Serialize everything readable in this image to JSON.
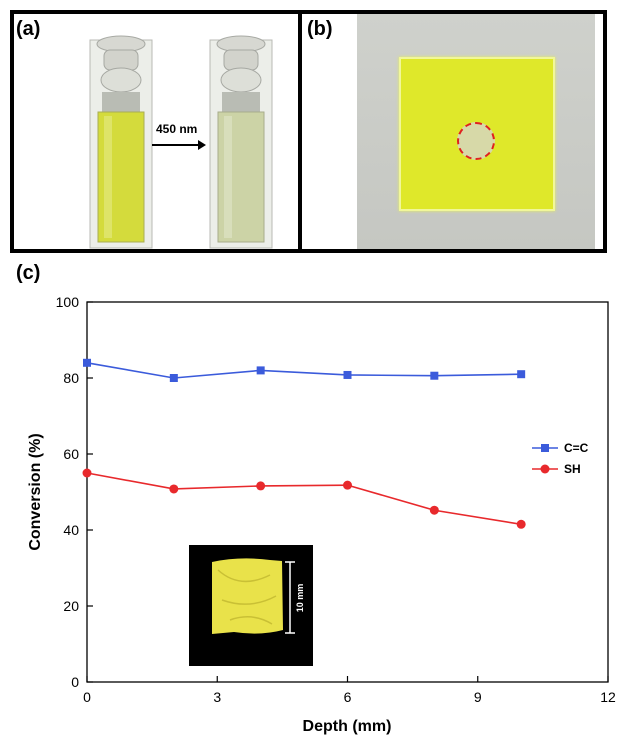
{
  "panels": {
    "a_label": "(a)",
    "b_label": "(b)",
    "c_label": "(c)",
    "arrow_text": "450 nm",
    "inset_scale": "10 mm"
  },
  "colors": {
    "cc_series": "#3b5bdb",
    "sh_series": "#e8292c",
    "yellow_liquid": "#d6dd2a",
    "bleached_liquid": "#c9d3a0",
    "gel_yellow": "#e9e24a"
  },
  "chart_data": {
    "type": "line",
    "xlabel": "Depth (mm)",
    "ylabel": "Conversion (%)",
    "xlim": [
      0,
      12
    ],
    "ylim": [
      0,
      100
    ],
    "xticks": [
      0,
      3,
      6,
      9,
      12
    ],
    "yticks": [
      0,
      20,
      40,
      60,
      80,
      100
    ],
    "grid": false,
    "legend_position": "right",
    "series": [
      {
        "name": "C=C",
        "marker": "square",
        "color": "#3b5bdb",
        "x": [
          0,
          2,
          4,
          6,
          8,
          10
        ],
        "y": [
          84,
          80,
          82,
          80.8,
          80.6,
          81
        ]
      },
      {
        "name": "SH",
        "marker": "circle",
        "color": "#e8292c",
        "x": [
          0,
          2,
          4,
          6,
          8,
          10
        ],
        "y": [
          55,
          50.8,
          51.6,
          51.8,
          45.2,
          41.5
        ]
      }
    ]
  }
}
